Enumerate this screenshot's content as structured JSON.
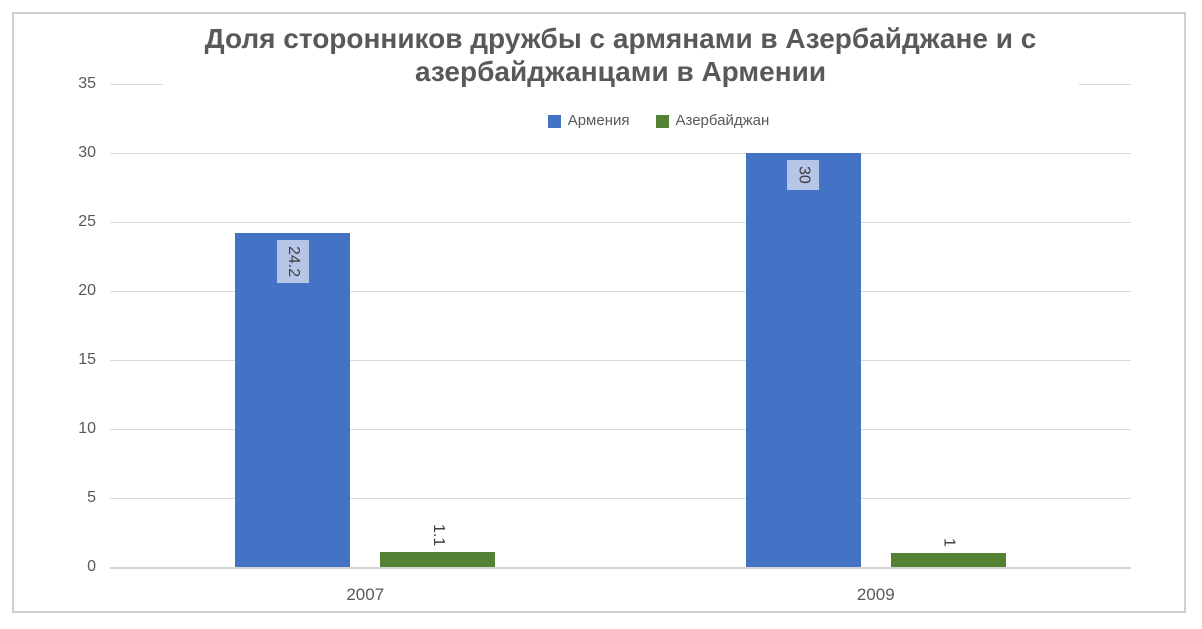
{
  "chart_data": {
    "type": "bar",
    "title": "Доля сторонников дружбы с армянами в Азербайджане и с азербайджанцами в Армении",
    "categories": [
      "2007",
      "2009"
    ],
    "series": [
      {
        "name": "Армения",
        "color": "#4472C4",
        "values": [
          24.2,
          30
        ],
        "data_labels": {
          "position": "inside-end",
          "rotation": "vertical",
          "fill": "#B6C5E8"
        }
      },
      {
        "name": "Азербайджан",
        "color": "#548235",
        "values": [
          1.1,
          1
        ],
        "data_labels": {
          "position": "outside-end",
          "rotation": "vertical",
          "fill": "none"
        }
      }
    ],
    "xlabel": "",
    "ylabel": "",
    "ylim": [
      0,
      35
    ],
    "yticks": [
      0,
      5,
      10,
      15,
      20,
      25,
      30,
      35
    ],
    "grid": true,
    "legend_position": "top-center"
  },
  "styles": {
    "title_color": "#595959",
    "axis_text_color": "#595959",
    "data_label_color": "#404040",
    "gridline_color": "#D9D9D9",
    "axis_line_color": "#D4D4D4",
    "frame_border_color": "#CFCFCF",
    "background": "#FFFFFF"
  }
}
